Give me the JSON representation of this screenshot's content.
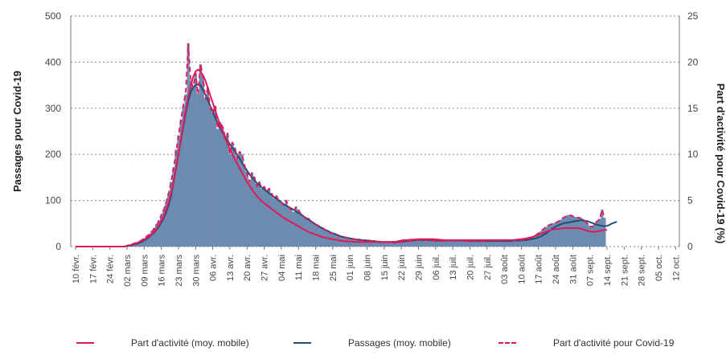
{
  "chart_data": {
    "type": "bar",
    "ylabel_left": "Passages pour Covid-19",
    "ylabel_right": "Part d'activité pour Covid-19 (%)",
    "ylim_left": [
      0,
      500
    ],
    "ylim_right": [
      0,
      25
    ],
    "yticks_left": [
      "0",
      "100",
      "200",
      "300",
      "400",
      "500"
    ],
    "yticks_right": [
      "0",
      "5",
      "10",
      "15",
      "20",
      "25"
    ],
    "x_tick_labels": [
      "10 févr.",
      "17 févr.",
      "24 févr.",
      "02 mars",
      "09 mars",
      "16 mars",
      "23 mars",
      "30 mars",
      "06 avr.",
      "13 avr.",
      "20 avr.",
      "27 avr.",
      "04 mai",
      "11 mai",
      "18 mai",
      "25 mai",
      "01 juin",
      "08 juin",
      "15 juin",
      "22 juin",
      "29 juin",
      "06 juil.",
      "13 juil.",
      "20 juil.",
      "27 juil.",
      "03 août",
      "10 août",
      "17 août",
      "24 août",
      "31 août",
      "07 sept.",
      "14 sept.",
      "21 sept.",
      "28 sept.",
      "05 oct.",
      "12 oct."
    ],
    "grid": "horizontal dotted",
    "legend_placement": "bottom",
    "series": [
      {
        "name": "Passages pour Covid-19",
        "type": "bar",
        "axis": "left",
        "color": "#6e8db3",
        "values": [
          0,
          0,
          0,
          0,
          0,
          0,
          0,
          0,
          0,
          0,
          0,
          0,
          0,
          0,
          0,
          0,
          0,
          0,
          0,
          0,
          0,
          2,
          4,
          5,
          7,
          9,
          11,
          14,
          18,
          22,
          27,
          33,
          40,
          48,
          57,
          68,
          80,
          95,
          115,
          140,
          170,
          210,
          240,
          275,
          305,
          330,
          440,
          360,
          345,
          375,
          330,
          395,
          370,
          320,
          345,
          300,
          290,
          305,
          255,
          270,
          260,
          240,
          245,
          200,
          225,
          215,
          190,
          205,
          200,
          175,
          160,
          140,
          160,
          150,
          130,
          140,
          125,
          130,
          120,
          125,
          115,
          105,
          110,
          100,
          95,
          90,
          100,
          85,
          80,
          75,
          85,
          80,
          70,
          65,
          60,
          62,
          55,
          52,
          48,
          45,
          42,
          40,
          36,
          34,
          30,
          28,
          26,
          24,
          22,
          20,
          20,
          18,
          17,
          16,
          16,
          15,
          14,
          14,
          13,
          13,
          12,
          12,
          11,
          11,
          10,
          10,
          10,
          9,
          9,
          8,
          8,
          8,
          9,
          10,
          10,
          11,
          12,
          12,
          13,
          14,
          14,
          14,
          14,
          14,
          13,
          13,
          13,
          12,
          12,
          12,
          12,
          12,
          12,
          13,
          13,
          13,
          13,
          13,
          12,
          12,
          12,
          12,
          12,
          12,
          12,
          12,
          12,
          12,
          13,
          13,
          13,
          13,
          13,
          14,
          14,
          14,
          14,
          14,
          14,
          14,
          14,
          14,
          14,
          15,
          16,
          17,
          19,
          22,
          25,
          29,
          33,
          38,
          42,
          46,
          48,
          50,
          52,
          54,
          58,
          62,
          65,
          68,
          68,
          66,
          64,
          63,
          62,
          60,
          55,
          50,
          45,
          42,
          50,
          55,
          60,
          80,
          62
        ]
      },
      {
        "name": "Passages (moy. mobile)",
        "type": "line",
        "axis": "left",
        "color": "#1f4e79",
        "values": [
          0,
          0,
          0,
          0,
          0,
          0,
          0,
          0,
          0,
          0,
          0,
          0,
          0,
          0,
          0,
          0,
          0,
          0,
          0,
          0,
          0,
          1,
          2,
          3,
          5,
          6,
          8,
          10,
          13,
          16,
          20,
          25,
          30,
          36,
          43,
          52,
          62,
          74,
          90,
          110,
          140,
          170,
          200,
          230,
          260,
          290,
          315,
          335,
          345,
          350,
          352,
          350,
          340,
          330,
          318,
          305,
          292,
          280,
          268,
          257,
          247,
          238,
          230,
          222,
          215,
          207,
          199,
          191,
          182,
          173,
          165,
          157,
          150,
          144,
          138,
          133,
          128,
          124,
          120,
          116,
          112,
          108,
          104,
          100,
          96,
          92,
          89,
          86,
          83,
          80,
          76,
          73,
          70,
          66,
          62,
          59,
          55,
          52,
          48,
          45,
          42,
          39,
          36,
          34,
          31,
          29,
          27,
          25,
          23,
          21,
          20,
          19,
          18,
          17,
          16,
          15,
          15,
          14,
          14,
          13,
          13,
          12,
          12,
          11,
          11,
          10,
          10,
          10,
          10,
          10,
          10,
          10,
          10,
          11,
          11,
          12,
          12,
          13,
          13,
          14,
          14,
          14,
          14,
          14,
          14,
          14,
          13,
          13,
          13,
          13,
          13,
          13,
          13,
          13,
          13,
          13,
          13,
          13,
          13,
          13,
          13,
          12,
          12,
          12,
          12,
          12,
          12,
          12,
          12,
          12,
          12,
          12,
          12,
          12,
          12,
          12,
          12,
          12,
          12,
          13,
          13,
          13,
          13,
          14,
          14,
          15,
          16,
          17,
          18,
          20,
          22,
          25,
          28,
          32,
          36,
          40,
          43,
          46,
          48,
          50,
          51,
          52,
          53,
          54,
          55,
          56,
          57,
          57,
          56,
          55,
          53,
          51,
          49,
          47,
          46,
          45,
          44,
          45,
          47,
          50,
          52,
          54
        ]
      },
      {
        "name": "Part d'activité (moy. mobile)",
        "type": "line",
        "axis": "right",
        "color": "#e0195b",
        "values": [
          0,
          0,
          0,
          0,
          0,
          0,
          0,
          0,
          0,
          0,
          0,
          0,
          0,
          0,
          0,
          0,
          0,
          0,
          0,
          0,
          0,
          0.1,
          0.15,
          0.2,
          0.3,
          0.4,
          0.5,
          0.6,
          0.75,
          0.9,
          1.1,
          1.3,
          1.6,
          1.9,
          2.3,
          2.8,
          3.3,
          4,
          4.8,
          5.8,
          7,
          8.4,
          10,
          11.6,
          13.2,
          14.8,
          16.2,
          17.4,
          18.4,
          19,
          19.2,
          19,
          18.6,
          18,
          17.2,
          16.4,
          15.6,
          14.8,
          14,
          13.2,
          12.5,
          11.8,
          11.2,
          10.6,
          10,
          9.5,
          9,
          8.5,
          8,
          7.5,
          7,
          6.6,
          6.2,
          5.8,
          5.5,
          5.2,
          4.9,
          4.7,
          4.5,
          4.3,
          4.1,
          3.9,
          3.7,
          3.5,
          3.3,
          3.1,
          2.95,
          2.8,
          2.65,
          2.5,
          2.35,
          2.2,
          2.05,
          1.9,
          1.75,
          1.6,
          1.5,
          1.4,
          1.3,
          1.2,
          1.1,
          1,
          0.95,
          0.9,
          0.85,
          0.8,
          0.75,
          0.7,
          0.65,
          0.6,
          0.58,
          0.56,
          0.54,
          0.52,
          0.5,
          0.5,
          0.5,
          0.5,
          0.5,
          0.5,
          0.5,
          0.5,
          0.5,
          0.5,
          0.5,
          0.5,
          0.5,
          0.5,
          0.5,
          0.5,
          0.5,
          0.55,
          0.6,
          0.65,
          0.7,
          0.7,
          0.72,
          0.75,
          0.75,
          0.78,
          0.8,
          0.8,
          0.8,
          0.8,
          0.8,
          0.8,
          0.8,
          0.78,
          0.76,
          0.74,
          0.72,
          0.7,
          0.7,
          0.7,
          0.7,
          0.7,
          0.7,
          0.7,
          0.7,
          0.7,
          0.7,
          0.7,
          0.7,
          0.7,
          0.7,
          0.7,
          0.7,
          0.7,
          0.7,
          0.7,
          0.7,
          0.7,
          0.7,
          0.7,
          0.7,
          0.7,
          0.7,
          0.7,
          0.7,
          0.72,
          0.75,
          0.78,
          0.8,
          0.85,
          0.9,
          0.95,
          1,
          1.1,
          1.2,
          1.3,
          1.4,
          1.5,
          1.6,
          1.7,
          1.8,
          1.85,
          1.9,
          1.9,
          1.95,
          2,
          2,
          2,
          2,
          2,
          2,
          2,
          1.95,
          1.9,
          1.8,
          1.7,
          1.65,
          1.6,
          1.6,
          1.65,
          1.7,
          1.75,
          1.8,
          1.8
        ]
      },
      {
        "name": "Part d'activité pour Covid-19",
        "type": "line",
        "style": "dashed",
        "axis": "right",
        "color": "#e0195b",
        "values": [
          0,
          0,
          0,
          0,
          0,
          0,
          0,
          0,
          0,
          0,
          0,
          0,
          0,
          0,
          0,
          0,
          0,
          0,
          0,
          0,
          0,
          0.1,
          0.2,
          0.25,
          0.35,
          0.45,
          0.55,
          0.7,
          0.9,
          1.1,
          1.3,
          1.6,
          1.9,
          2.3,
          2.8,
          3.4,
          4,
          4.8,
          5.8,
          7,
          8.5,
          10.2,
          12,
          13.7,
          15.3,
          16.9,
          22,
          18,
          17.3,
          18.8,
          16.5,
          19.8,
          18.5,
          16,
          17.3,
          15,
          14.5,
          15.3,
          12.8,
          13.5,
          13,
          12,
          12.3,
          10,
          11.3,
          10.8,
          9.5,
          10.3,
          10,
          8.8,
          8,
          7,
          8,
          7.5,
          6.5,
          7,
          6.3,
          6.5,
          6,
          6.3,
          5.8,
          5.3,
          5.5,
          5,
          4.8,
          4.5,
          5,
          4.3,
          4,
          3.8,
          4.3,
          4,
          3.5,
          3.3,
          3,
          3.1,
          2.8,
          2.6,
          2.4,
          2.3,
          2.1,
          2,
          1.8,
          1.7,
          1.5,
          1.4,
          1.3,
          1.2,
          1.1,
          1,
          1,
          0.9,
          0.85,
          0.8,
          0.8,
          0.75,
          0.7,
          0.7,
          0.65,
          0.65,
          0.6,
          0.6,
          0.55,
          0.55,
          0.5,
          0.5,
          0.5,
          0.45,
          0.45,
          0.4,
          0.4,
          0.4,
          0.45,
          0.5,
          0.5,
          0.55,
          0.6,
          0.6,
          0.65,
          0.7,
          0.7,
          0.7,
          0.7,
          0.7,
          0.65,
          0.65,
          0.65,
          0.6,
          0.6,
          0.6,
          0.6,
          0.6,
          0.6,
          0.65,
          0.65,
          0.65,
          0.65,
          0.65,
          0.6,
          0.6,
          0.6,
          0.6,
          0.6,
          0.6,
          0.6,
          0.6,
          0.6,
          0.6,
          0.65,
          0.65,
          0.65,
          0.65,
          0.65,
          0.7,
          0.7,
          0.7,
          0.7,
          0.7,
          0.7,
          0.7,
          0.7,
          0.7,
          0.7,
          0.75,
          0.8,
          0.85,
          0.95,
          1.1,
          1.25,
          1.45,
          1.65,
          1.9,
          2.1,
          2.3,
          2.4,
          2.5,
          2.6,
          2.7,
          2.9,
          3.1,
          3.25,
          3.4,
          3.4,
          3.3,
          3.2,
          3.15,
          3.1,
          3,
          2.75,
          2.5,
          2.25,
          2.1,
          2.5,
          2.75,
          3,
          4,
          3.1
        ]
      }
    ]
  },
  "legend": {
    "items": [
      {
        "label": "Part d'activité (moy. mobile)"
      },
      {
        "label": "Passages (moy. mobile)"
      },
      {
        "label": "Part d'activité pour Covid-19"
      }
    ]
  }
}
